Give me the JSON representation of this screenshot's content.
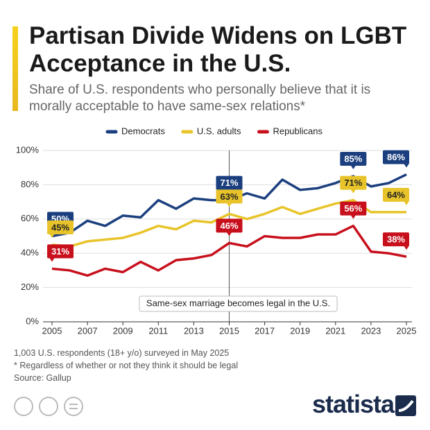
{
  "chart_data": {
    "type": "line",
    "title": "Partisan Divide Widens on LGBT Acceptance in the U.S.",
    "subtitle": "Share of U.S. respondents who personally believe that it is morally acceptable to have same-sex relations*",
    "x": [
      2005,
      2006,
      2007,
      2008,
      2009,
      2010,
      2011,
      2012,
      2013,
      2014,
      2015,
      2016,
      2017,
      2018,
      2019,
      2020,
      2021,
      2022,
      2023,
      2024,
      2025
    ],
    "xlim": [
      2005,
      2025
    ],
    "xticks": [
      2005,
      2007,
      2009,
      2011,
      2013,
      2015,
      2017,
      2019,
      2021,
      2023,
      2025
    ],
    "ylim": [
      0,
      100
    ],
    "yticks": [
      {
        "value": 0,
        "label": "0%"
      },
      {
        "value": 20,
        "label": "20%"
      },
      {
        "value": 40,
        "label": "40%"
      },
      {
        "value": 60,
        "label": "60%"
      },
      {
        "value": 80,
        "label": "80%"
      },
      {
        "value": 100,
        "label": "100%"
      }
    ],
    "grid": true,
    "legend": "top",
    "series": [
      {
        "name": "Democrats",
        "color": "#1b3f7e",
        "values": [
          50,
          52,
          59,
          56,
          62,
          61,
          71,
          66,
          72,
          71,
          71,
          75,
          72,
          83,
          77,
          78,
          81,
          85,
          79,
          81,
          86
        ],
        "value_labels": [
          "50%",
          null,
          null,
          null,
          null,
          null,
          null,
          null,
          null,
          null,
          "71%",
          null,
          null,
          null,
          null,
          null,
          null,
          "85%",
          null,
          null,
          "86%"
        ]
      },
      {
        "name": "U.S. adults",
        "color": "#e8c42a",
        "values": [
          45,
          44,
          47,
          48,
          49,
          52,
          56,
          54,
          59,
          58,
          63,
          60,
          63,
          67,
          63,
          66,
          69,
          71,
          64,
          64,
          64
        ],
        "value_labels": [
          "45%",
          null,
          null,
          null,
          null,
          null,
          null,
          null,
          null,
          null,
          "63%",
          null,
          null,
          null,
          null,
          null,
          null,
          "71%",
          null,
          null,
          "64%"
        ]
      },
      {
        "name": "Republicans",
        "color": "#c8101d",
        "values": [
          31,
          30,
          27,
          31,
          29,
          35,
          30,
          36,
          37,
          39,
          46,
          44,
          50,
          49,
          49,
          51,
          51,
          56,
          41,
          40,
          38
        ],
        "value_labels": [
          "31%",
          null,
          null,
          null,
          null,
          null,
          null,
          null,
          null,
          null,
          "46%",
          null,
          null,
          null,
          null,
          null,
          null,
          "56%",
          null,
          null,
          "38%"
        ]
      }
    ],
    "annotation": {
      "x": 2015,
      "text": "Same-sex marriage becomes legal in the U.S."
    },
    "notes": [
      "1,003 U.S. respondents (18+ y/o) surveyed in May 2025",
      "* Regardless of whether or not they think it should be legal",
      "Source: Gallup"
    ],
    "brand": "statista"
  }
}
